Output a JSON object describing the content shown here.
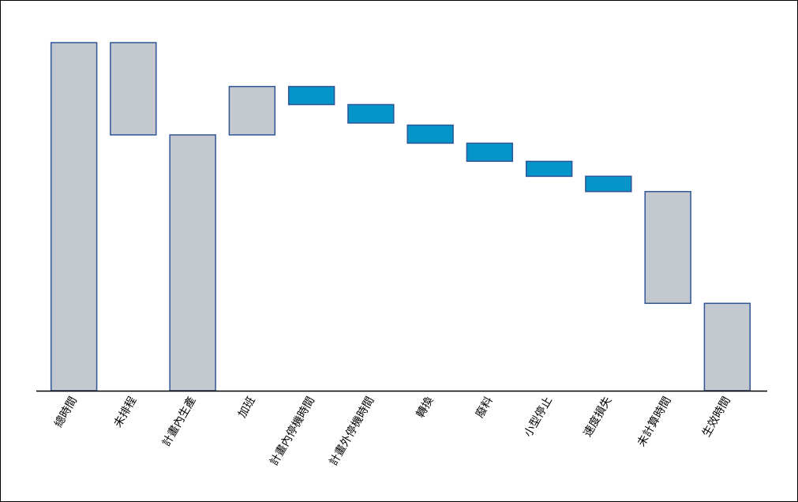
{
  "chart_data": {
    "type": "bar",
    "subtype": "waterfall",
    "title": "",
    "xlabel": "",
    "ylabel": "",
    "ylim": [
      0,
      100
    ],
    "grid": false,
    "legend": "none",
    "colors": {
      "total": "#c3c7ce",
      "loss": "#0595c9",
      "outline": "#2f5597"
    },
    "categories": [
      "總時間",
      "未排程",
      "計畫內生產",
      "加班",
      "計畫內停機時間",
      "計畫外停機時間",
      "轉換",
      "廢料",
      "小型停止",
      "速度損失",
      "未計算時間",
      "生效時間"
    ],
    "bars": [
      {
        "label": "總時間",
        "low": 0,
        "high": 100,
        "kind": "total"
      },
      {
        "label": "未排程",
        "low": 73.5,
        "high": 100,
        "kind": "total"
      },
      {
        "label": "計畫內生產",
        "low": 0,
        "high": 73.5,
        "kind": "total"
      },
      {
        "label": "加班",
        "low": 73.5,
        "high": 87.4,
        "kind": "total"
      },
      {
        "label": "計畫內停機時間",
        "low": 82.2,
        "high": 87.4,
        "kind": "loss"
      },
      {
        "label": "計畫外停機時間",
        "low": 76.9,
        "high": 82.2,
        "kind": "loss"
      },
      {
        "label": "轉換",
        "low": 71.1,
        "high": 76.3,
        "kind": "loss"
      },
      {
        "label": "廢料",
        "low": 65.9,
        "high": 71.1,
        "kind": "loss"
      },
      {
        "label": "小型停止",
        "low": 61.6,
        "high": 65.9,
        "kind": "loss"
      },
      {
        "label": "速度損失",
        "low": 57.2,
        "high": 61.6,
        "kind": "loss"
      },
      {
        "label": "未計算時間",
        "low": 25.1,
        "high": 57.2,
        "kind": "total"
      },
      {
        "label": "生效時間",
        "low": 0,
        "high": 25.1,
        "kind": "total"
      }
    ]
  }
}
